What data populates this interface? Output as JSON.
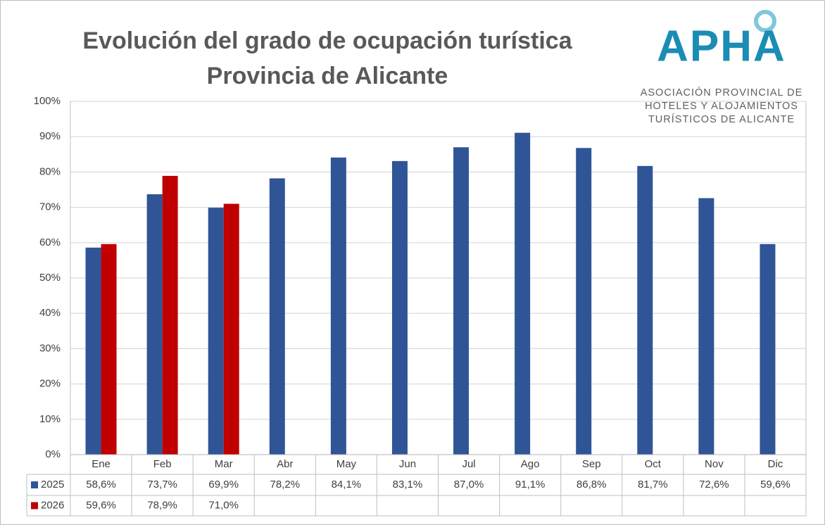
{
  "chart_data": {
    "type": "bar",
    "title": "Evolución del grado de ocupación turística",
    "subtitle": "Provincia de Alicante",
    "categories": [
      "Ene",
      "Feb",
      "Mar",
      "Abr",
      "May",
      "Jun",
      "Jul",
      "Ago",
      "Sep",
      "Oct",
      "Nov",
      "Dic"
    ],
    "series": [
      {
        "name": "2025",
        "color": "#2f5597",
        "values": [
          58.6,
          73.7,
          69.9,
          78.2,
          84.1,
          83.1,
          87.0,
          91.1,
          86.8,
          81.7,
          72.6,
          59.6
        ],
        "value_labels": [
          "58,6%",
          "73,7%",
          "69,9%",
          "78,2%",
          "84,1%",
          "83,1%",
          "87,0%",
          "91,1%",
          "86,8%",
          "81,7%",
          "72,6%",
          "59,6%"
        ]
      },
      {
        "name": "2026",
        "color": "#c00000",
        "values": [
          59.6,
          78.9,
          71.0,
          null,
          null,
          null,
          null,
          null,
          null,
          null,
          null,
          null
        ],
        "value_labels": [
          "59,6%",
          "78,9%",
          "71,0%",
          null,
          null,
          null,
          null,
          null,
          null,
          null,
          null,
          null
        ]
      }
    ],
    "ylim": [
      0,
      100
    ],
    "yticks": [
      {
        "value": 0,
        "label": "0%"
      },
      {
        "value": 10,
        "label": "10%"
      },
      {
        "value": 20,
        "label": "20%"
      },
      {
        "value": 30,
        "label": "30%"
      },
      {
        "value": 40,
        "label": "40%"
      },
      {
        "value": 50,
        "label": "50%"
      },
      {
        "value": 60,
        "label": "60%"
      },
      {
        "value": 70,
        "label": "70%"
      },
      {
        "value": 80,
        "label": "80%"
      },
      {
        "value": 90,
        "label": "90%"
      },
      {
        "value": 100,
        "label": "100%"
      }
    ],
    "grid": true
  },
  "logo": {
    "text": "APHA",
    "lines": [
      "ASOCIACIÓN PROVINCIAL DE",
      "HOTELES Y ALOJAMIENTOS",
      "TURÍSTICOS DE ALICANTE"
    ]
  }
}
